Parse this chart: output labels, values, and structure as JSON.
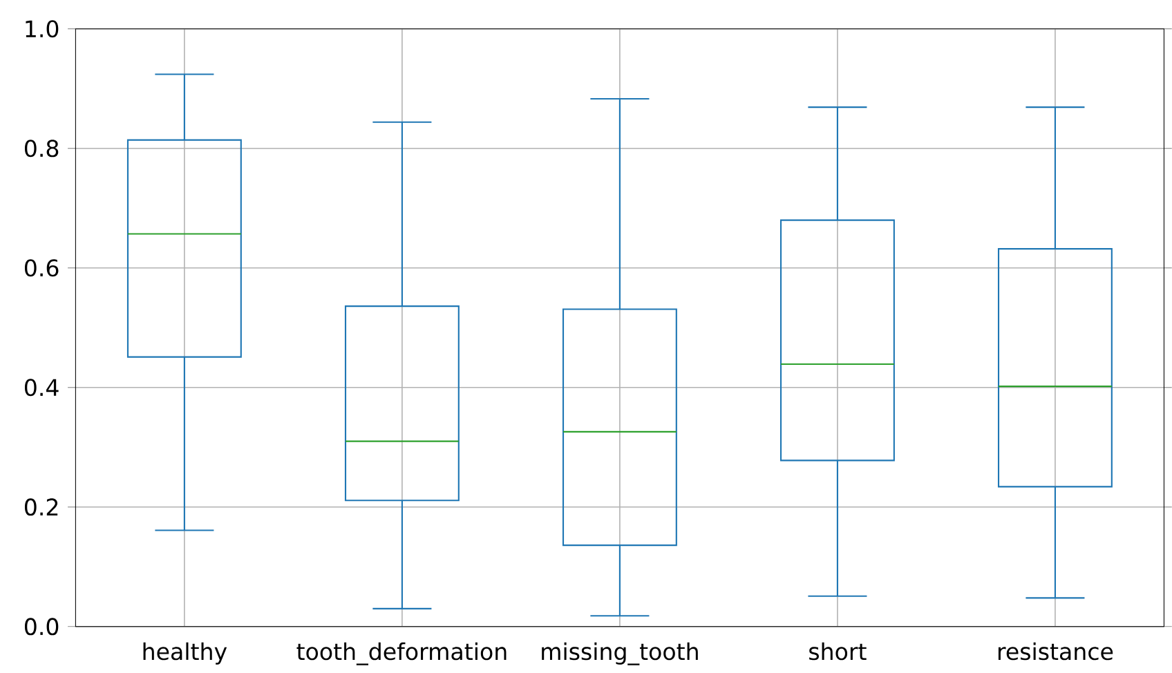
{
  "chart_data": {
    "type": "box",
    "categories": [
      "healthy",
      "tooth_deformation",
      "missing_tooth",
      "short",
      "resistance"
    ],
    "boxes": [
      {
        "low": 0.161,
        "q1": 0.451,
        "median": 0.657,
        "q3": 0.814,
        "high": 0.924
      },
      {
        "low": 0.03,
        "q1": 0.211,
        "median": 0.31,
        "q3": 0.536,
        "high": 0.844
      },
      {
        "low": 0.018,
        "q1": 0.136,
        "median": 0.326,
        "q3": 0.531,
        "high": 0.883
      },
      {
        "low": 0.051,
        "q1": 0.278,
        "median": 0.439,
        "q3": 0.68,
        "high": 0.869
      },
      {
        "low": 0.048,
        "q1": 0.234,
        "median": 0.402,
        "q3": 0.632,
        "high": 0.869
      }
    ],
    "color": "#1f77b4",
    "ylim": [
      0,
      1
    ],
    "yticks": [
      {
        "value": 0,
        "label": "0.0"
      },
      {
        "value": 0.2,
        "label": "0.2"
      },
      {
        "value": 0.4,
        "label": "0.4"
      },
      {
        "value": 0.6,
        "label": "0.6"
      },
      {
        "value": 0.8,
        "label": "0.8"
      },
      {
        "value": 1,
        "label": "1.0"
      }
    ],
    "grid": true
  }
}
